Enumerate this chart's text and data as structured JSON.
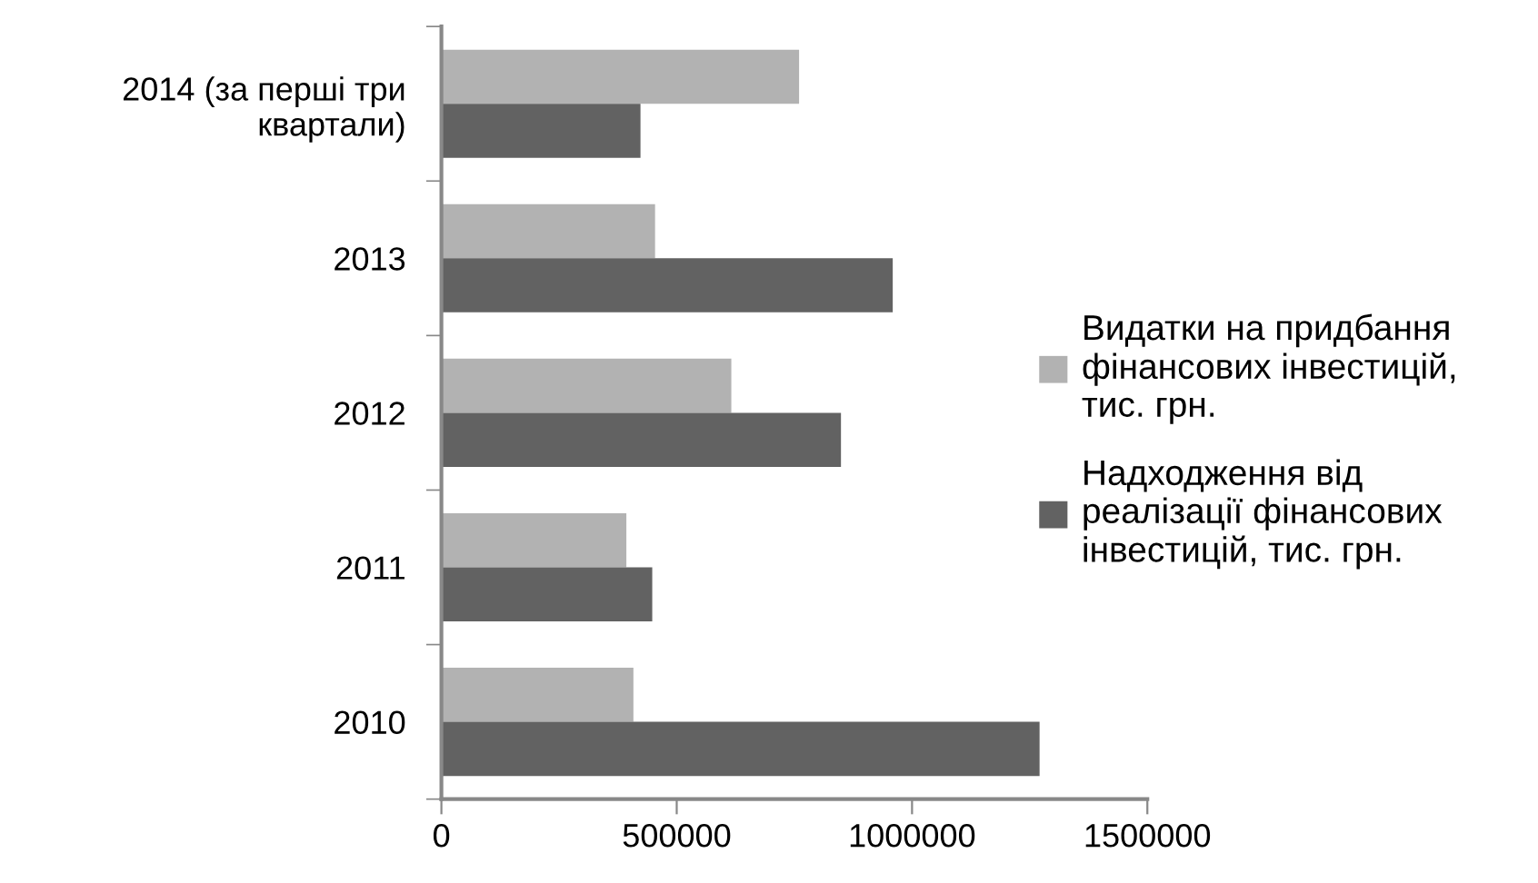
{
  "chart_data": {
    "type": "bar",
    "orientation": "horizontal",
    "categories": [
      "2014 (за перші три\nквартали)",
      "2013",
      "2012",
      "2011",
      "2010"
    ],
    "series": [
      {
        "name": "Видатки на придбання\nфінансових інвестицій,\nтис. грн.",
        "color": "#b2b2b2",
        "values": [
          760000,
          454000,
          616000,
          393000,
          408000
        ]
      },
      {
        "name": "Надходження від\nреалізації фінансових\nінвестицій, тис. грн.",
        "color": "#626262",
        "values": [
          423000,
          959000,
          849000,
          448000,
          1271000
        ]
      }
    ],
    "xlim": [
      0,
      1500000
    ],
    "xticks": [
      0,
      500000,
      1000000,
      1500000
    ],
    "grid": false,
    "legend": "right"
  }
}
